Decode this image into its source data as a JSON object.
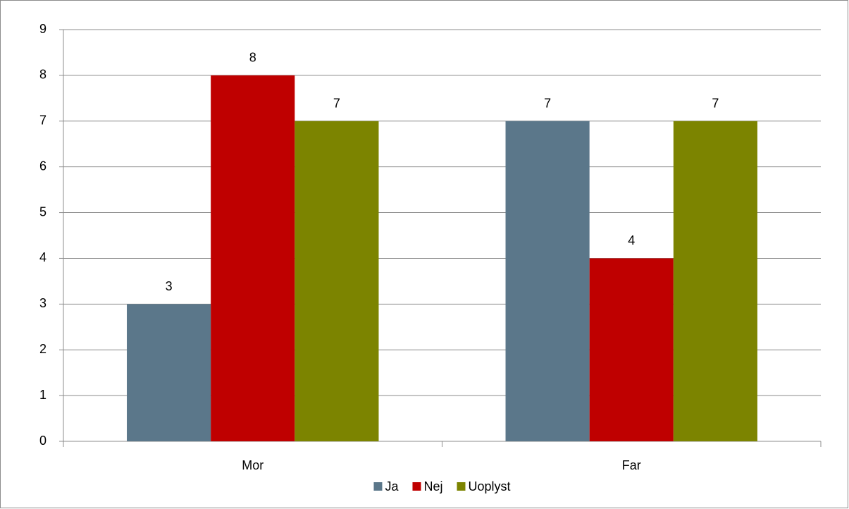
{
  "chart_data": {
    "type": "bar",
    "categories": [
      "Mor",
      "Far"
    ],
    "series": [
      {
        "name": "Ja",
        "color": "#5b778a",
        "values": [
          3,
          7
        ]
      },
      {
        "name": "Nej",
        "color": "#bf0000",
        "values": [
          8,
          4
        ]
      },
      {
        "name": "Uoplyst",
        "color": "#7c8400",
        "values": [
          7,
          7
        ]
      }
    ],
    "ylim": [
      0,
      9
    ],
    "yticks": [
      0,
      1,
      2,
      3,
      4,
      5,
      6,
      7,
      8,
      9
    ],
    "grid": true,
    "legend": "bottom",
    "data_labels": true
  }
}
